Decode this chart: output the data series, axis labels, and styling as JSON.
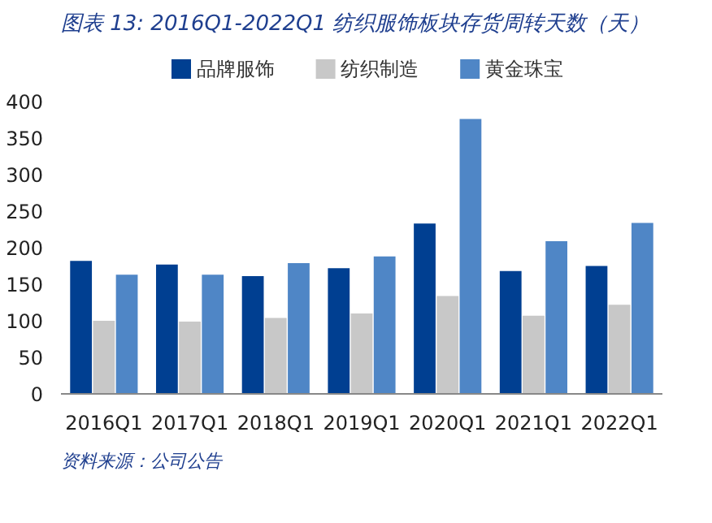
{
  "chart_data": {
    "type": "bar",
    "title": "图表 13:  2016Q1-2022Q1 纺织服饰板块存货周转天数（天）",
    "categories": [
      "2016Q1",
      "2017Q1",
      "2018Q1",
      "2019Q1",
      "2020Q1",
      "2021Q1",
      "2022Q1"
    ],
    "series": [
      {
        "name": "品牌服饰",
        "color": "#003f91",
        "values": [
          182,
          177,
          161,
          172,
          233,
          168,
          175
        ]
      },
      {
        "name": "纺织制造",
        "color": "#c8c8c8",
        "values": [
          100,
          99,
          104,
          110,
          134,
          107,
          122
        ]
      },
      {
        "name": "黄金珠宝",
        "color": "#4f86c6",
        "values": [
          163,
          163,
          179,
          188,
          376,
          209,
          234
        ]
      }
    ],
    "ylim": [
      0,
      400
    ],
    "yticks": [
      0,
      50,
      100,
      150,
      200,
      250,
      300,
      350,
      400
    ],
    "grid": false,
    "legend": "top",
    "annotations": [
      "资料来源：公司公告"
    ]
  }
}
